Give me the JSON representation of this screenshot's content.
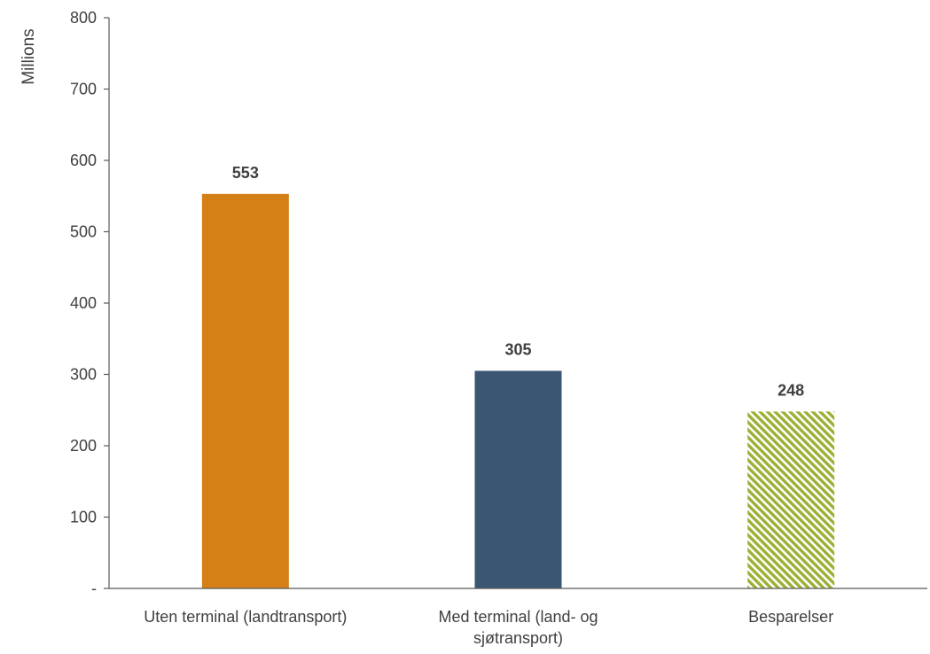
{
  "chart_data": {
    "type": "bar",
    "title": "",
    "xlabel": "",
    "ylabel": "Millions",
    "ylim": [
      0,
      800
    ],
    "yticks": [
      0,
      100,
      200,
      300,
      400,
      500,
      600,
      700,
      800
    ],
    "ytick_labels": [
      "-",
      "100",
      "200",
      "300",
      "400",
      "500",
      "600",
      "700",
      "800"
    ],
    "categories": [
      "Uten terminal (landtransport)",
      "Med terminal (land- og sjøtransport)",
      "Besparelser"
    ],
    "category_label_lines": [
      [
        "Uten terminal (landtransport)"
      ],
      [
        "Med terminal (land- og",
        "sjøtransport)"
      ],
      [
        "Besparelser"
      ]
    ],
    "values": [
      553,
      305,
      248
    ],
    "data_labels": [
      "553",
      "305",
      "248"
    ],
    "bar_colors": [
      "#D57F17",
      "#3A5673",
      "#9DB035"
    ],
    "bar_fills": [
      "solid",
      "solid",
      "diagonal-hatch"
    ],
    "grid": false,
    "legend": "none"
  }
}
